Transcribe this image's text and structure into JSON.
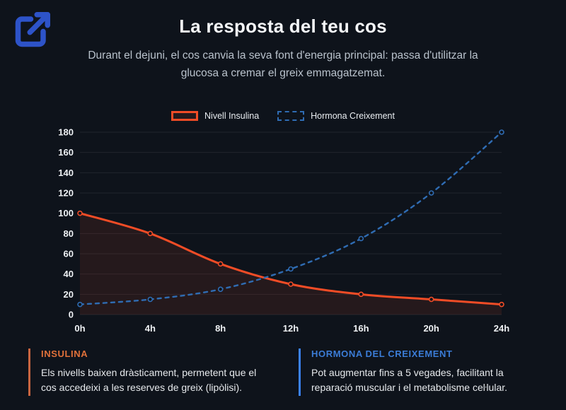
{
  "page": {
    "background": "#0e131b"
  },
  "header": {
    "icon": "external-link-icon",
    "icon_color": "#2d53c8",
    "title": "La resposta del teu cos",
    "subtitle": "Durant el dejuni, el cos canvia la seva font d'energia principal: passa d'utilitzar la glucosa a cremar el greix emmagatzemat."
  },
  "chart_data": {
    "type": "line",
    "categories": [
      "0h",
      "4h",
      "8h",
      "12h",
      "16h",
      "20h",
      "24h"
    ],
    "series": [
      {
        "name": "Nivell Insulina",
        "values": [
          100,
          80,
          50,
          30,
          20,
          15,
          10
        ],
        "color": "#f14c26",
        "style": "solid",
        "fill": "rgba(241,76,38,0.10)"
      },
      {
        "name": "Hormona Creixement",
        "values": [
          10,
          15,
          25,
          45,
          75,
          120,
          180
        ],
        "color": "#2f6cb3",
        "style": "dashed",
        "fill": "none"
      }
    ],
    "ylim": [
      0,
      180
    ],
    "ytick_step": 20,
    "grid": true,
    "gridline_color": "rgba(255,255,255,0.08)",
    "legend_position": "top",
    "xlabel": "",
    "ylabel": ""
  },
  "footnotes": [
    {
      "heading": "INSULINA",
      "text": "Els nivells baixen dràsticament, permetent que el cos accedeixi a les reserves de greix (lipòlisi).",
      "accent": "#e0713a",
      "border": "#c96540"
    },
    {
      "heading": "HORMONA DEL CREIXEMENT",
      "text": "Pot augmentar fins a 5 vegades, facilitant la reparació muscular i el metabolisme ceŀlular.",
      "accent": "#3b7cd6",
      "border": "#3b82f6"
    }
  ]
}
